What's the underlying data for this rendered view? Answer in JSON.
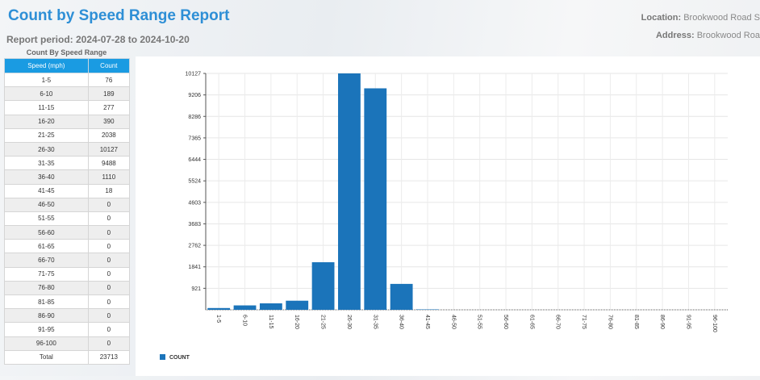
{
  "header": {
    "title": "Count by Speed Range Report",
    "period": "Report period: 2024-07-28 to 2024-10-20",
    "location_label": "Location:",
    "location": "Brookwood Road S",
    "address_label": "Address:",
    "address": "Brookwood Roa"
  },
  "table": {
    "caption": "Count By Speed Range",
    "header": [
      "Speed (mph)",
      "Count"
    ],
    "rows": [
      [
        "1-5",
        "76"
      ],
      [
        "6-10",
        "189"
      ],
      [
        "11-15",
        "277"
      ],
      [
        "16-20",
        "390"
      ],
      [
        "21-25",
        "2038"
      ],
      [
        "26-30",
        "10127"
      ],
      [
        "31-35",
        "9488"
      ],
      [
        "36-40",
        "1110"
      ],
      [
        "41-45",
        "18"
      ],
      [
        "46-50",
        "0"
      ],
      [
        "51-55",
        "0"
      ],
      [
        "56-60",
        "0"
      ],
      [
        "61-65",
        "0"
      ],
      [
        "66-70",
        "0"
      ],
      [
        "71-75",
        "0"
      ],
      [
        "76-80",
        "0"
      ],
      [
        "81-85",
        "0"
      ],
      [
        "86-90",
        "0"
      ],
      [
        "91-95",
        "0"
      ],
      [
        "96-100",
        "0"
      ],
      [
        "Total",
        "23713"
      ]
    ]
  },
  "chart_data": {
    "type": "bar",
    "categories": [
      "1-5",
      "6-10",
      "11-15",
      "16-20",
      "21-25",
      "26-30",
      "31-35",
      "36-40",
      "41-45",
      "46-50",
      "51-55",
      "56-60",
      "61-65",
      "66-70",
      "71-75",
      "76-80",
      "81-85",
      "86-90",
      "91-95",
      "96-100"
    ],
    "series": [
      {
        "name": "COUNT",
        "color": "#1b74ba",
        "values": [
          76,
          189,
          277,
          390,
          2038,
          10127,
          9488,
          1110,
          18,
          0,
          0,
          0,
          0,
          0,
          0,
          0,
          0,
          0,
          0,
          0
        ]
      }
    ],
    "ylim": [
      0,
      10127
    ],
    "yticks": [
      921,
      1841,
      2762,
      3683,
      4603,
      5524,
      6444,
      7365,
      8286,
      9206,
      10127
    ],
    "grid": true
  }
}
